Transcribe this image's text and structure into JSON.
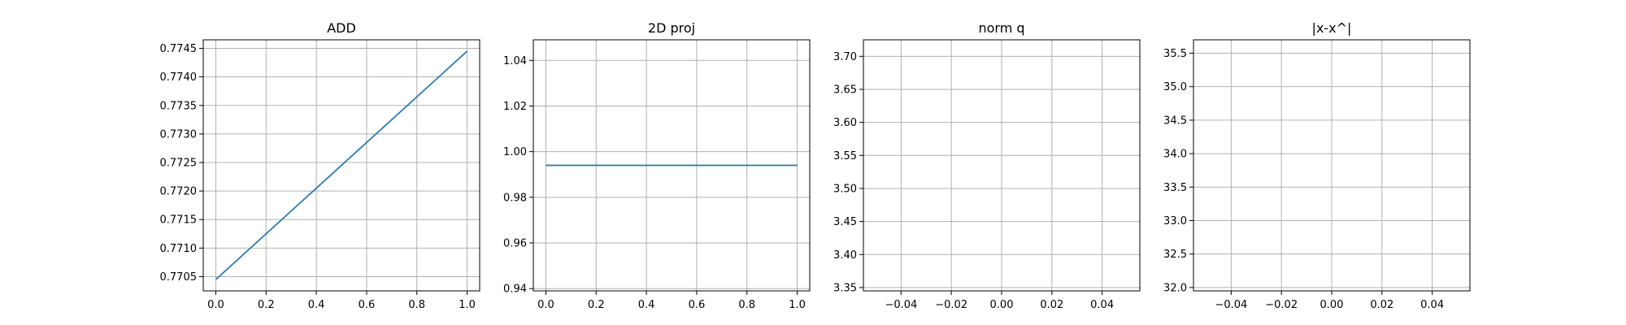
{
  "colors": {
    "series": "#1f77b4",
    "grid": "#b0b0b0"
  },
  "chart_data": [
    {
      "type": "line",
      "title": "ADD",
      "grid": true,
      "xlim": [
        -0.05,
        1.05
      ],
      "ylim": [
        0.77025,
        0.77465
      ],
      "xticks": [
        0.0,
        0.2,
        0.4,
        0.6,
        0.8,
        1.0
      ],
      "xtick_labels": [
        "0.0",
        "0.2",
        "0.4",
        "0.6",
        "0.8",
        "1.0"
      ],
      "yticks": [
        0.7705,
        0.771,
        0.7715,
        0.772,
        0.7725,
        0.773,
        0.7735,
        0.774,
        0.7745
      ],
      "ytick_labels": [
        "0.7705",
        "0.7710",
        "0.7715",
        "0.7720",
        "0.7725",
        "0.7730",
        "0.7735",
        "0.7740",
        "0.7745"
      ],
      "series": [
        {
          "x": [
            0.0,
            1.0
          ],
          "y": [
            0.77045,
            0.77445
          ]
        }
      ]
    },
    {
      "type": "line",
      "title": "2D proj",
      "grid": true,
      "xlim": [
        -0.05,
        1.05
      ],
      "ylim": [
        0.939,
        1.049
      ],
      "xticks": [
        0.0,
        0.2,
        0.4,
        0.6,
        0.8,
        1.0
      ],
      "xtick_labels": [
        "0.0",
        "0.2",
        "0.4",
        "0.6",
        "0.8",
        "1.0"
      ],
      "yticks": [
        0.94,
        0.96,
        0.98,
        1.0,
        1.02,
        1.04
      ],
      "ytick_labels": [
        "0.94",
        "0.96",
        "0.98",
        "1.00",
        "1.02",
        "1.04"
      ],
      "series": [
        {
          "x": [
            0.0,
            1.0
          ],
          "y": [
            0.994,
            0.994
          ]
        }
      ]
    },
    {
      "type": "line",
      "title": "norm q",
      "grid": true,
      "xlim": [
        -0.055,
        0.055
      ],
      "ylim": [
        3.345,
        3.725
      ],
      "xticks": [
        -0.04,
        -0.02,
        0.0,
        0.02,
        0.04
      ],
      "xtick_labels": [
        "−0.04",
        "−0.02",
        "0.00",
        "0.02",
        "0.04"
      ],
      "yticks": [
        3.35,
        3.4,
        3.45,
        3.5,
        3.55,
        3.6,
        3.65,
        3.7
      ],
      "ytick_labels": [
        "3.35",
        "3.40",
        "3.45",
        "3.50",
        "3.55",
        "3.60",
        "3.65",
        "3.70"
      ],
      "series": []
    },
    {
      "type": "line",
      "title": "|x-x^|",
      "grid": true,
      "xlim": [
        -0.055,
        0.055
      ],
      "ylim": [
        31.95,
        35.7
      ],
      "xticks": [
        -0.04,
        -0.02,
        0.0,
        0.02,
        0.04
      ],
      "xtick_labels": [
        "−0.04",
        "−0.02",
        "0.00",
        "0.02",
        "0.04"
      ],
      "yticks": [
        32.0,
        32.5,
        33.0,
        33.5,
        34.0,
        34.5,
        35.0,
        35.5
      ],
      "ytick_labels": [
        "32.0",
        "32.5",
        "33.0",
        "33.5",
        "34.0",
        "34.5",
        "35.0",
        "35.5"
      ],
      "series": []
    }
  ]
}
